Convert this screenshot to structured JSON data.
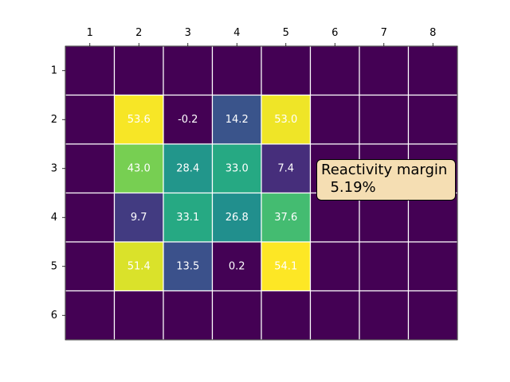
{
  "chart_data": {
    "type": "heatmap",
    "title": "",
    "xlabel": "",
    "ylabel": "",
    "x_ticks": [
      "1",
      "2",
      "3",
      "4",
      "5",
      "6",
      "7",
      "8"
    ],
    "y_ticks": [
      "1",
      "2",
      "3",
      "4",
      "5",
      "6"
    ],
    "x_tick_position": "top",
    "colormap": "viridis",
    "color_range": [
      0,
      54.1
    ],
    "grid": true,
    "grid_color": "#ffffff",
    "values": [
      [
        null,
        null,
        null,
        null,
        null,
        null,
        null,
        null
      ],
      [
        null,
        53.6,
        -0.2,
        14.2,
        53.0,
        null,
        null,
        null
      ],
      [
        null,
        43.0,
        28.4,
        33.0,
        7.4,
        null,
        null,
        null
      ],
      [
        null,
        9.7,
        33.1,
        26.8,
        37.6,
        null,
        null,
        null
      ],
      [
        null,
        51.4,
        13.5,
        0.2,
        54.1,
        null,
        null,
        null
      ],
      [
        null,
        null,
        null,
        null,
        null,
        null,
        null,
        null
      ]
    ],
    "value_labels": [
      [
        "",
        "",
        "",
        "",
        "",
        "",
        "",
        ""
      ],
      [
        "",
        "53.6",
        "-0.2",
        "14.2",
        "53.0",
        "",
        "",
        ""
      ],
      [
        "",
        "43.0",
        "28.4",
        "33.0",
        "7.4",
        "",
        "",
        ""
      ],
      [
        "",
        "9.7",
        "33.1",
        "26.8",
        "37.6",
        "",
        "",
        ""
      ],
      [
        "",
        "51.4",
        "13.5",
        "0.2",
        "54.1",
        "",
        "",
        ""
      ],
      [
        "",
        "",
        "",
        "",
        "",
        "",
        "",
        ""
      ]
    ],
    "annotation": {
      "line1": "Reactivity margin",
      "line2": "  5.19%",
      "background_color": "#f5deb3"
    }
  }
}
